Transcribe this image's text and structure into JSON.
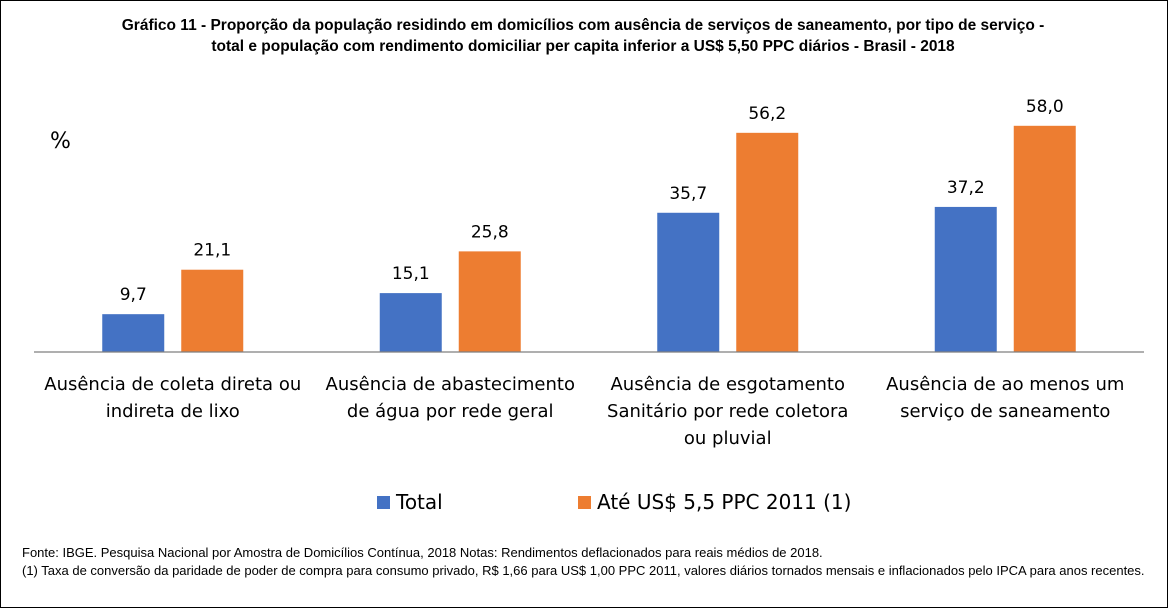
{
  "title_lines": [
    "Gráfico 11 - Proporção da população residindo em domicílios com ausência de serviços de saneamento, por tipo de serviço -",
    "total e população com rendimento domiciliar per capita inferior a US$ 5,50 PPC diários - Brasil - 2018"
  ],
  "footer": {
    "source": "Fonte: IBGE. Pesquisa Nacional por Amostra de Domicílios Contínua, 2018  Notas: Rendimentos  deflacionados para reais médios de 2018.",
    "note": "(1) Taxa  de  conversão  da  paridade  de  poder  de  compra  para  consumo  privado,  R$  1,66  para  US$  1,00  PPC  2011,  valores  diários  tornados  mensais  e inflacionados pelo IPCA para anos recentes."
  },
  "chart_data": {
    "type": "bar",
    "title": "",
    "ylabel": "%",
    "xlabel": "",
    "ylim": [
      0,
      62
    ],
    "grid": false,
    "legend_position": "bottom",
    "categories": [
      [
        "Ausência de coleta direta ou",
        "indireta de lixo"
      ],
      [
        "Ausência de abastecimento",
        "de água por rede geral"
      ],
      [
        "Ausência de esgotamento",
        "Sanitário por rede coletora",
        "ou pluvial"
      ],
      [
        "Ausência de ao menos um",
        "serviço de saneamento"
      ]
    ],
    "series": [
      {
        "name": "Total",
        "color": "#4472C4",
        "values": [
          9.7,
          15.1,
          35.7,
          37.2
        ],
        "labels": [
          "9,7",
          "15,1",
          "35,7",
          "37,2"
        ]
      },
      {
        "name": "Até US$ 5,5 PPC 2011 (1)",
        "color": "#ED7D31",
        "values": [
          21.1,
          25.8,
          56.2,
          58.0
        ],
        "labels": [
          "21,1",
          "25,8",
          "56,2",
          "58,0"
        ]
      }
    ]
  }
}
